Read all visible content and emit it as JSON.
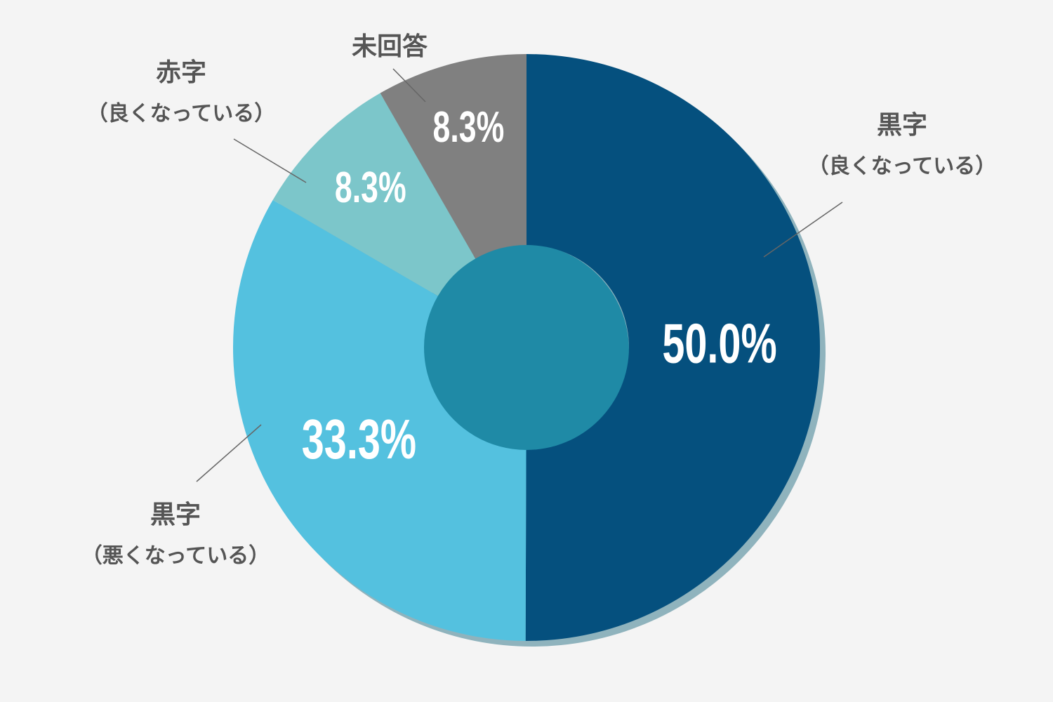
{
  "chart_data": {
    "type": "donut",
    "categories": [
      "黒字",
      "黒字",
      "赤字",
      "未回答"
    ],
    "sublabels": [
      "（良くなっている）",
      "（悪くなっている）",
      "（良くなっている）",
      null
    ],
    "values": [
      50.0,
      33.3,
      8.3,
      8.3
    ],
    "value_labels": [
      "50.0%",
      "33.3%",
      "8.3%",
      "8.3%"
    ],
    "colors": [
      "#05507e",
      "#54c1df",
      "#7cc6ca",
      "#808080"
    ]
  }
}
